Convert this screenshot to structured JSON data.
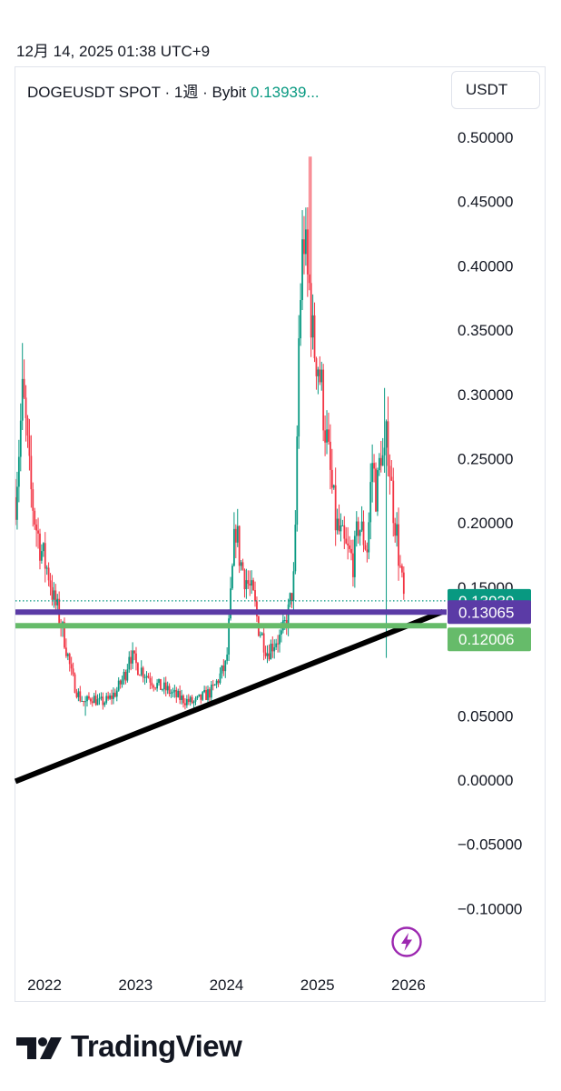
{
  "timestamp": "12月 14, 2025 01:38 UTC+9",
  "header": {
    "symbol": "DOGEUSDT SPOT",
    "separator": "·",
    "interval": "1週",
    "exchange": "Bybit",
    "price": "0.13939..."
  },
  "unit_button": "USDT",
  "brand": "TradingView",
  "icons": {
    "logo": "tradingview-logo-icon",
    "bolt": "lightning-bolt-icon"
  },
  "colors": {
    "up": "#089981",
    "down": "#f23645",
    "last_price": "#089981",
    "purple_line": "#5b3ba6",
    "green_line": "#66bb6a",
    "trendline": "#000000"
  },
  "chart_data": {
    "type": "candlestick",
    "symbol": "DOGEUSDT",
    "interval": "1 week",
    "y_axis": {
      "ticks": [
        "0.50000",
        "0.45000",
        "0.40000",
        "0.35000",
        "0.30000",
        "0.25000",
        "0.20000",
        "0.15000",
        "0.05000",
        "0.00000",
        "−0.05000",
        "−0.10000"
      ],
      "tick_values": [
        0.5,
        0.45,
        0.4,
        0.35,
        0.3,
        0.25,
        0.2,
        0.15,
        0.05,
        0.0,
        -0.05,
        -0.1
      ],
      "range": [
        -0.11,
        0.52
      ]
    },
    "x_axis": {
      "ticks": [
        "2022",
        "2023",
        "2024",
        "2025",
        "2026"
      ],
      "tick_years": [
        2022,
        2023,
        2024,
        2025,
        2026
      ],
      "range": [
        2021.68,
        2026.42
      ]
    },
    "price_labels": [
      {
        "value": 0.13939,
        "text": "0.13939",
        "color": "#089981"
      },
      {
        "value": 0.13065,
        "text": "0.13065",
        "color": "#5b3ba6"
      },
      {
        "value": 0.12006,
        "text": "0.12006",
        "color": "#66bb6a"
      }
    ],
    "horizontal_lines": [
      {
        "value": 0.13065,
        "color": "#5b3ba6"
      },
      {
        "value": 0.12006,
        "color": "#66bb6a"
      }
    ],
    "trendline": {
      "x": [
        2021.68,
        2026.38
      ],
      "y": [
        -0.001,
        0.131
      ],
      "color": "#000000"
    },
    "close_path": {
      "x": [
        2021.68,
        2021.72,
        2021.76,
        2021.8,
        2021.84,
        2021.9,
        2021.96,
        2022.0,
        2022.05,
        2022.1,
        2022.15,
        2022.22,
        2022.3,
        2022.38,
        2022.45,
        2022.52,
        2022.6,
        2022.7,
        2022.8,
        2022.9,
        2022.93,
        2023.0,
        2023.08,
        2023.15,
        2023.25,
        2023.35,
        2023.45,
        2023.55,
        2023.65,
        2023.75,
        2023.85,
        2023.92,
        2024.0,
        2024.1,
        2024.15,
        2024.2,
        2024.25,
        2024.3,
        2024.35,
        2024.45,
        2024.55,
        2024.6,
        2024.68,
        2024.75,
        2024.8,
        2024.85,
        2024.88,
        2024.92,
        2024.95,
        2025.0,
        2025.05,
        2025.12,
        2025.2,
        2025.3,
        2025.4,
        2025.45,
        2025.55,
        2025.6,
        2025.65,
        2025.7,
        2025.73,
        2025.77,
        2025.82,
        2025.86,
        2025.9,
        2025.95
      ],
      "y": [
        0.22,
        0.26,
        0.3,
        0.27,
        0.23,
        0.2,
        0.18,
        0.17,
        0.16,
        0.14,
        0.13,
        0.11,
        0.08,
        0.065,
        0.06,
        0.065,
        0.06,
        0.062,
        0.07,
        0.085,
        0.1,
        0.09,
        0.085,
        0.08,
        0.073,
        0.07,
        0.065,
        0.062,
        0.06,
        0.065,
        0.07,
        0.08,
        0.09,
        0.2,
        0.17,
        0.16,
        0.15,
        0.14,
        0.12,
        0.1,
        0.11,
        0.11,
        0.13,
        0.16,
        0.36,
        0.43,
        0.39,
        0.38,
        0.34,
        0.33,
        0.3,
        0.25,
        0.2,
        0.18,
        0.17,
        0.2,
        0.18,
        0.25,
        0.22,
        0.26,
        0.24,
        0.27,
        0.22,
        0.2,
        0.17,
        0.14
      ],
      "highs": [
        {
          "x": 2021.76,
          "y": 0.34
        },
        {
          "x": 2024.92,
          "y": 0.485
        },
        {
          "x": 2025.73,
          "y": 0.305
        }
      ],
      "lows": [
        {
          "x": 2022.45,
          "y": 0.05
        },
        {
          "x": 2025.76,
          "y": 0.095
        }
      ]
    }
  }
}
